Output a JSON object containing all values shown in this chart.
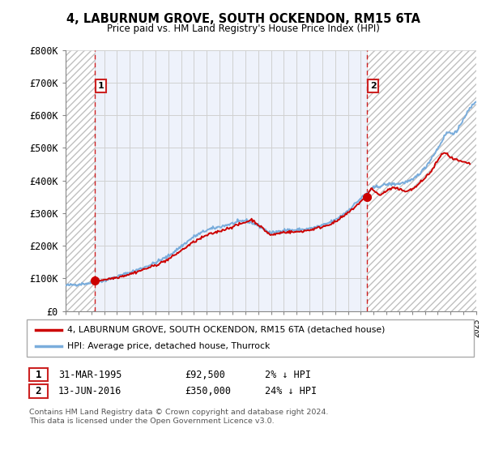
{
  "title": "4, LABURNUM GROVE, SOUTH OCKENDON, RM15 6TA",
  "subtitle": "Price paid vs. HM Land Registry's House Price Index (HPI)",
  "ylabel_ticks": [
    "£0",
    "£100K",
    "£200K",
    "£300K",
    "£400K",
    "£500K",
    "£600K",
    "£700K",
    "£800K"
  ],
  "ytick_values": [
    0,
    100000,
    200000,
    300000,
    400000,
    500000,
    600000,
    700000,
    800000
  ],
  "ylim": [
    0,
    800000
  ],
  "xlim_years": [
    1993,
    2025
  ],
  "point1_year": 1995.25,
  "point1_value": 92500,
  "point2_year": 2016.46,
  "point2_value": 350000,
  "line_color_red": "#cc0000",
  "line_color_blue": "#7aaddc",
  "hatch_edgecolor": "#c0c0c0",
  "grid_color": "#d0d0d0",
  "legend_line1": "4, LABURNUM GROVE, SOUTH OCKENDON, RM15 6TA (detached house)",
  "legend_line2": "HPI: Average price, detached house, Thurrock",
  "table_row1_num": "1",
  "table_row1_date": "31-MAR-1995",
  "table_row1_price": "£92,500",
  "table_row1_pct": "2% ↓ HPI",
  "table_row2_num": "2",
  "table_row2_date": "13-JUN-2016",
  "table_row2_price": "£350,000",
  "table_row2_pct": "24% ↓ HPI",
  "footnote_line1": "Contains HM Land Registry data © Crown copyright and database right 2024.",
  "footnote_line2": "This data is licensed under the Open Government Licence v3.0.",
  "bg_color": "#ffffff",
  "plot_bg_color": "#eef2fb"
}
